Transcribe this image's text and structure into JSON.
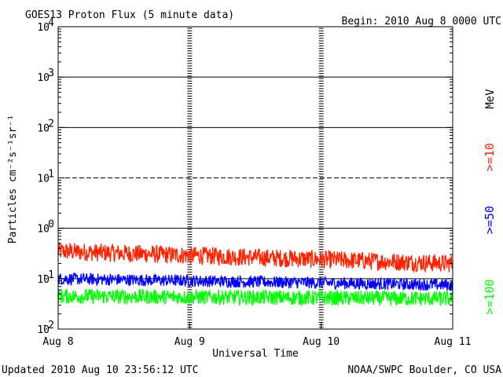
{
  "chart_data": {
    "type": "line",
    "title": "GOES13 Proton Flux (5 minute data)",
    "begin_label": "Begin: 2010 Aug 8 0000 UTC",
    "xlabel": "Universal Time",
    "ylabel": "Particles cm⁻²s⁻¹sr⁻¹",
    "y_scale": "log",
    "ylim": [
      0.01,
      10000
    ],
    "y_ticks": [
      {
        "value": 0.01,
        "base": "10",
        "exp": "-2"
      },
      {
        "value": 0.1,
        "base": "10",
        "exp": "-1"
      },
      {
        "value": 1,
        "base": "10",
        "exp": "0"
      },
      {
        "value": 10,
        "base": "10",
        "exp": "1"
      },
      {
        "value": 100,
        "base": "10",
        "exp": "2"
      },
      {
        "value": 1000,
        "base": "10",
        "exp": "3"
      },
      {
        "value": 10000,
        "base": "10",
        "exp": "4"
      }
    ],
    "x_range_days": [
      0,
      3
    ],
    "x_ticks": [
      "Aug 8",
      "Aug 9",
      "Aug 10",
      "Aug 11"
    ],
    "threshold_lines": [
      {
        "value": 1000,
        "style": "solid"
      },
      {
        "value": 100,
        "style": "solid"
      },
      {
        "value": 10,
        "style": "dashed"
      },
      {
        "value": 1,
        "style": "solid"
      },
      {
        "value": 0.1,
        "style": "solid"
      }
    ],
    "series": [
      {
        "name": ">=10",
        "color": "#ff2200",
        "level_start": 0.35,
        "level_end": 0.2,
        "noise_dex": 0.18
      },
      {
        "name": ">=50",
        "color": "#0000ff",
        "level_start": 0.1,
        "level_end": 0.075,
        "noise_dex": 0.12
      },
      {
        "name": ">=100",
        "color": "#00ff00",
        "level_start": 0.045,
        "level_end": 0.04,
        "noise_dex": 0.15
      }
    ],
    "unit_label": "MeV",
    "grid": "dashed vertical day markers",
    "footer_left": "Updated 2010 Aug 10 23:56:12 UTC",
    "footer_right": "NOAA/SWPC Boulder, CO USA"
  }
}
